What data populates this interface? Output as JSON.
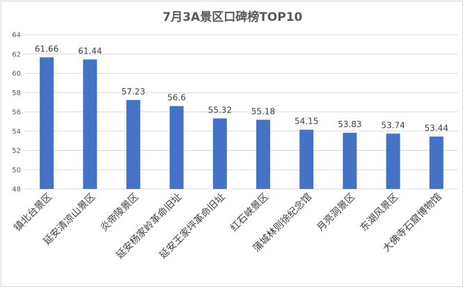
{
  "chart_data": {
    "type": "bar",
    "title": "7月3A景区口碑榜TOP10",
    "xlabel": "",
    "ylabel": "",
    "ylim": [
      48,
      64
    ],
    "yticks": [
      48,
      50,
      52,
      54,
      56,
      58,
      60,
      62,
      64
    ],
    "grid": true,
    "legend": "none",
    "bar_color": "#4472c4",
    "categories": [
      "镇北台景区",
      "延安清凉山景区",
      "炎帝陵景区",
      "延安杨家岭革命旧址",
      "延安王家坪革命旧址",
      "红石峡景区",
      "蒲城林则徐纪念馆",
      "月亮洞景区",
      "东湖风景区",
      "大佛寺石窟博物馆"
    ],
    "values": [
      61.66,
      61.44,
      57.23,
      56.6,
      55.32,
      55.18,
      54.15,
      53.83,
      53.74,
      53.44
    ],
    "value_labels": [
      "61.66",
      "61.44",
      "57.23",
      "56.6",
      "55.32",
      "55.18",
      "54.15",
      "53.83",
      "53.74",
      "53.44"
    ]
  }
}
